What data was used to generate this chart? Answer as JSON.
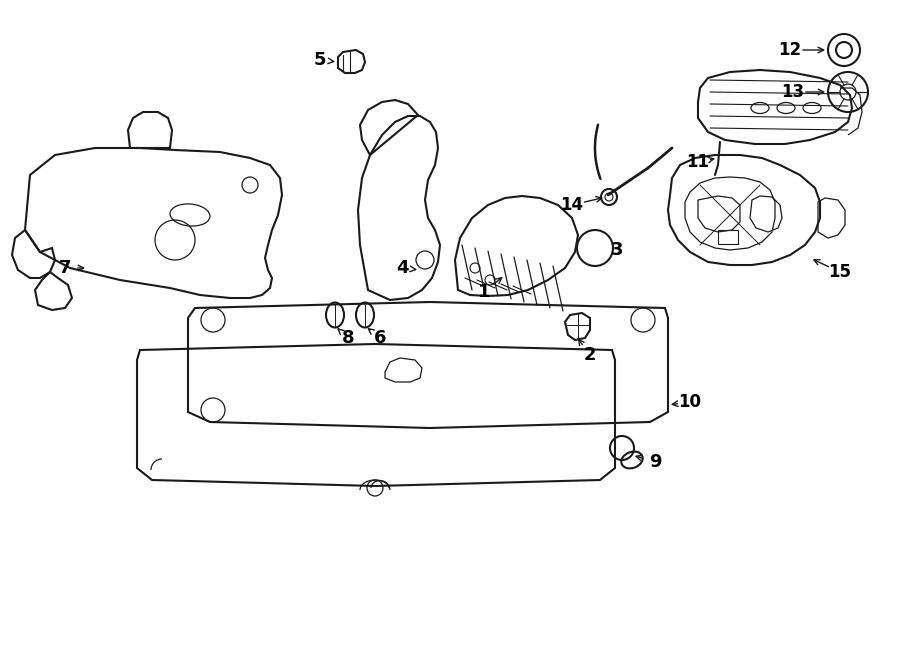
{
  "bg_color": "#ffffff",
  "line_color": "#1a1a1a",
  "label_color": "#000000",
  "fig_width": 9.0,
  "fig_height": 6.61,
  "dpi": 100
}
